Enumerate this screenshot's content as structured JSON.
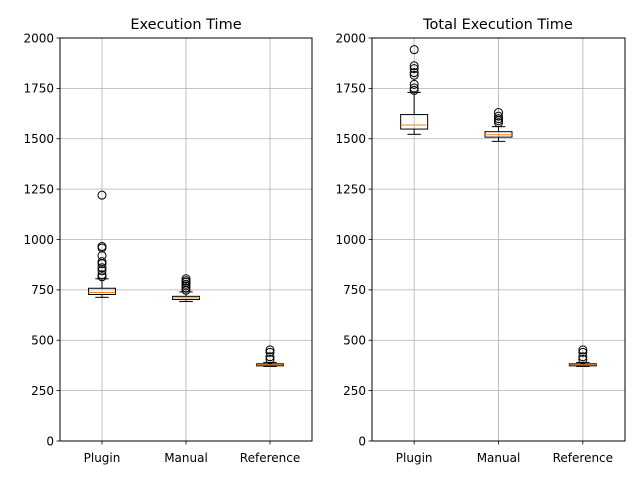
{
  "chart_data": [
    {
      "type": "boxplot",
      "title": "Execution Time",
      "xlabel": "",
      "ylabel": "",
      "categories": [
        "Plugin",
        "Manual",
        "Reference"
      ],
      "ylim": [
        0,
        2000
      ],
      "yticks": [
        0,
        250,
        500,
        750,
        1000,
        1250,
        1500,
        1750,
        2000
      ],
      "grid": true,
      "boxes": [
        {
          "category": "Plugin",
          "whisker_low": 713,
          "q1": 727,
          "median": 737,
          "q3": 758,
          "whisker_high": 805,
          "outliers": [
            815,
            825,
            845,
            860,
            880,
            890,
            920,
            958,
            965,
            1220
          ]
        },
        {
          "category": "Manual",
          "whisker_low": 692,
          "q1": 702,
          "median": 710,
          "q3": 718,
          "whisker_high": 740,
          "outliers": [
            748,
            760,
            770,
            778,
            788,
            795,
            805
          ]
        },
        {
          "category": "Reference",
          "whisker_low": 370,
          "q1": 373,
          "median": 378,
          "q3": 383,
          "whisker_high": 390,
          "outliers": [
            405,
            418,
            440,
            452
          ]
        }
      ]
    },
    {
      "type": "boxplot",
      "title": "Total Execution Time",
      "xlabel": "",
      "ylabel": "",
      "categories": [
        "Plugin",
        "Manual",
        "Reference"
      ],
      "ylim": [
        0,
        2000
      ],
      "yticks": [
        0,
        250,
        500,
        750,
        1000,
        1250,
        1500,
        1750,
        2000
      ],
      "grid": true,
      "boxes": [
        {
          "category": "Plugin",
          "whisker_low": 1522,
          "q1": 1548,
          "median": 1568,
          "q3": 1620,
          "whisker_high": 1730,
          "outliers": [
            1740,
            1752,
            1770,
            1815,
            1828,
            1848,
            1862,
            1942
          ]
        },
        {
          "category": "Manual",
          "whisker_low": 1487,
          "q1": 1508,
          "median": 1520,
          "q3": 1535,
          "whisker_high": 1560,
          "outliers": [
            1580,
            1590,
            1600,
            1612,
            1630
          ]
        },
        {
          "category": "Reference",
          "whisker_low": 370,
          "q1": 373,
          "median": 378,
          "q3": 383,
          "whisker_high": 390,
          "outliers": [
            405,
            418,
            440,
            452
          ]
        }
      ]
    }
  ]
}
